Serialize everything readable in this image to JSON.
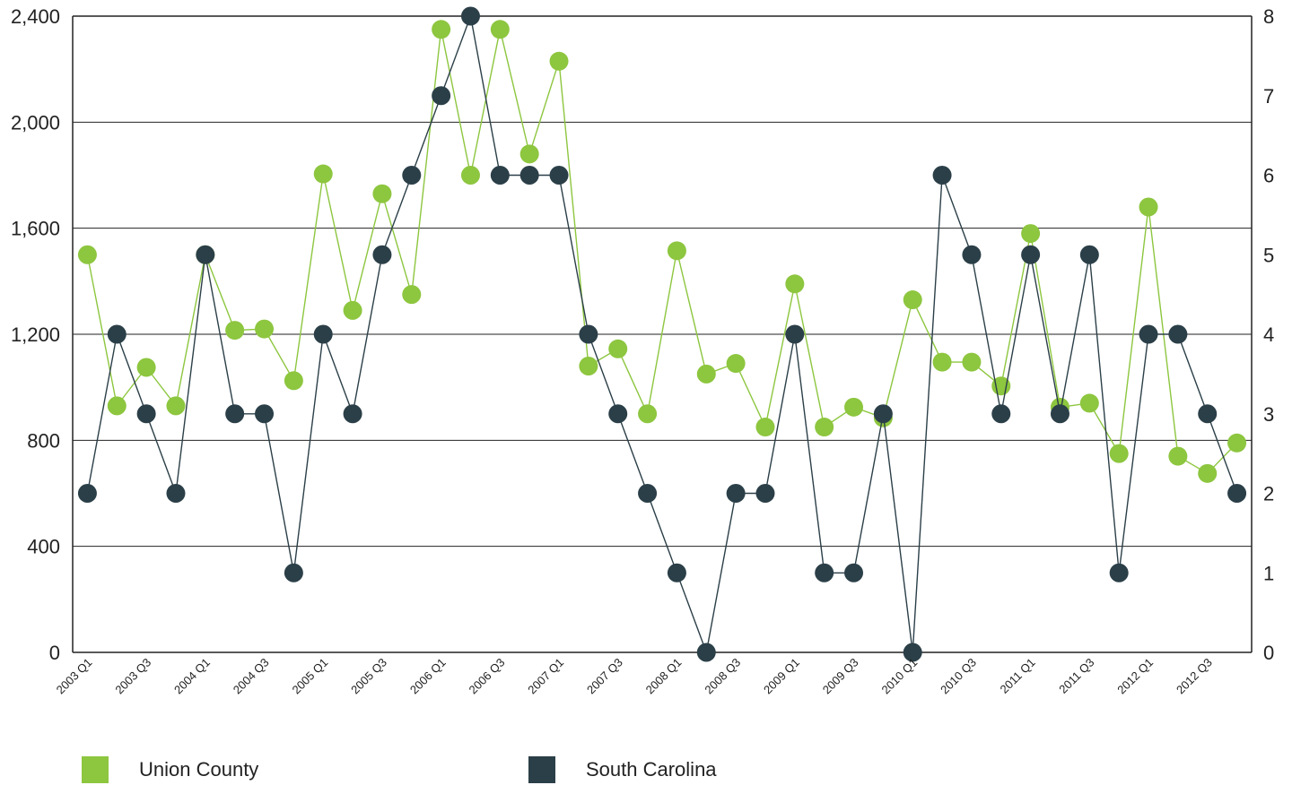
{
  "chart_data": {
    "type": "line",
    "categories": [
      "2003 Q1",
      "2003 Q2",
      "2003 Q3",
      "2003 Q4",
      "2004 Q1",
      "2004 Q2",
      "2004 Q3",
      "2004 Q4",
      "2005 Q1",
      "2005 Q2",
      "2005 Q3",
      "2005 Q4",
      "2006 Q1",
      "2006 Q2",
      "2006 Q3",
      "2006 Q4",
      "2007 Q1",
      "2007 Q2",
      "2007 Q3",
      "2007 Q4",
      "2008 Q1",
      "2008 Q2",
      "2008 Q3",
      "2008 Q4",
      "2009 Q1",
      "2009 Q2",
      "2009 Q3",
      "2009 Q4",
      "2010 Q1",
      "2010 Q2",
      "2010 Q3",
      "2010 Q4",
      "2011 Q1",
      "2011 Q2",
      "2011 Q3",
      "2011 Q4",
      "2012 Q1",
      "2012 Q2",
      "2012 Q3",
      "2012 Q4"
    ],
    "tick_labels": [
      "2003 Q1",
      "2003 Q3",
      "2004 Q1",
      "2004 Q3",
      "2005 Q1",
      "2005 Q3",
      "2006 Q1",
      "2006 Q3",
      "2007 Q1",
      "2007 Q3",
      "2008 Q1",
      "2008 Q3",
      "2009 Q1",
      "2009 Q3",
      "2010 Q1",
      "2010 Q3",
      "2011 Q1",
      "2011 Q3",
      "2012 Q1",
      "2012 Q3"
    ],
    "y_left": {
      "ticks": [
        "0",
        "400",
        "800",
        "1,200",
        "1,600",
        "2,000",
        "2,400"
      ],
      "ylim": [
        0,
        2400
      ]
    },
    "y_right": {
      "ticks": [
        "0",
        "1",
        "2",
        "3",
        "4",
        "5",
        "6",
        "7",
        "8"
      ],
      "ylim": [
        0,
        8
      ]
    },
    "grid": "horizontal",
    "legend_position": "bottom",
    "series": [
      {
        "name": "Union County",
        "axis": "left",
        "color": "#8dc63f",
        "values": [
          1500,
          930,
          1075,
          930,
          1500,
          1215,
          1220,
          1025,
          1805,
          1290,
          1730,
          1350,
          2350,
          1800,
          2350,
          1880,
          2230,
          1080,
          1145,
          900,
          1515,
          1050,
          1090,
          850,
          1390,
          850,
          925,
          885,
          1330,
          1095,
          1095,
          1005,
          1580,
          925,
          940,
          750,
          1680,
          740,
          675,
          790
        ]
      },
      {
        "name": "South Carolina",
        "axis": "right",
        "color": "#2b3f48",
        "values": [
          2,
          4,
          3,
          2,
          5,
          3,
          3,
          1,
          4,
          3,
          5,
          6,
          7,
          8,
          6,
          6,
          6,
          4,
          3,
          2,
          1,
          0,
          2,
          2,
          4,
          1,
          1,
          3,
          0,
          6,
          5,
          3,
          5,
          3,
          5,
          1,
          4,
          4,
          3,
          2
        ]
      }
    ]
  }
}
